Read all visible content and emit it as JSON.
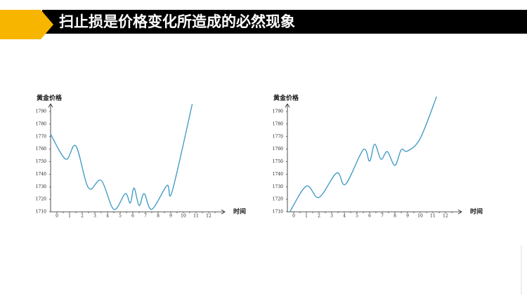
{
  "title": "扫止损是价格变化所造成的必然现象",
  "chart_data": [
    {
      "type": "line",
      "y_label": "黄金价格",
      "x_label": "时间",
      "xlim": [
        -0.5,
        12.5
      ],
      "xticks": [
        0,
        1,
        2,
        3,
        4,
        5,
        6,
        7,
        8,
        9,
        10,
        11,
        12
      ],
      "ylim": [
        1710,
        1790
      ],
      "yticks": [
        1710,
        1720,
        1730,
        1740,
        1750,
        1760,
        1770,
        1780,
        1790
      ],
      "series": [
        {
          "color": "#3a97c2",
          "x": [
            -0.5,
            0.7,
            1.5,
            2.5,
            3.5,
            4.5,
            5.4,
            5.8,
            6.1,
            6.5,
            6.9,
            7.5,
            8.7,
            9.1,
            10.7
          ],
          "values": [
            1772,
            1752,
            1762.5,
            1729,
            1735,
            1712,
            1724.5,
            1717,
            1729,
            1715,
            1724.5,
            1712,
            1731,
            1726,
            1796
          ]
        }
      ]
    },
    {
      "type": "line",
      "y_label": "黄金价格",
      "x_label": "时间",
      "xlim": [
        -0.5,
        12.5
      ],
      "xticks": [
        0,
        1,
        2,
        3,
        4,
        5,
        6,
        7,
        8,
        9,
        10,
        11,
        12
      ],
      "ylim": [
        1710,
        1790
      ],
      "yticks": [
        1710,
        1720,
        1730,
        1740,
        1750,
        1760,
        1770,
        1780,
        1790
      ],
      "series": [
        {
          "color": "#3a97c2",
          "x": [
            -0.3,
            1,
            2,
            3.4,
            4.1,
            5.5,
            6,
            6.4,
            6.9,
            7.4,
            8,
            8.5,
            9,
            10,
            11.3
          ],
          "values": [
            1710,
            1730.5,
            1721.5,
            1741,
            1732,
            1759.5,
            1750.5,
            1764,
            1752,
            1758,
            1747,
            1759.5,
            1758.5,
            1768.5,
            1802
          ]
        }
      ]
    }
  ]
}
